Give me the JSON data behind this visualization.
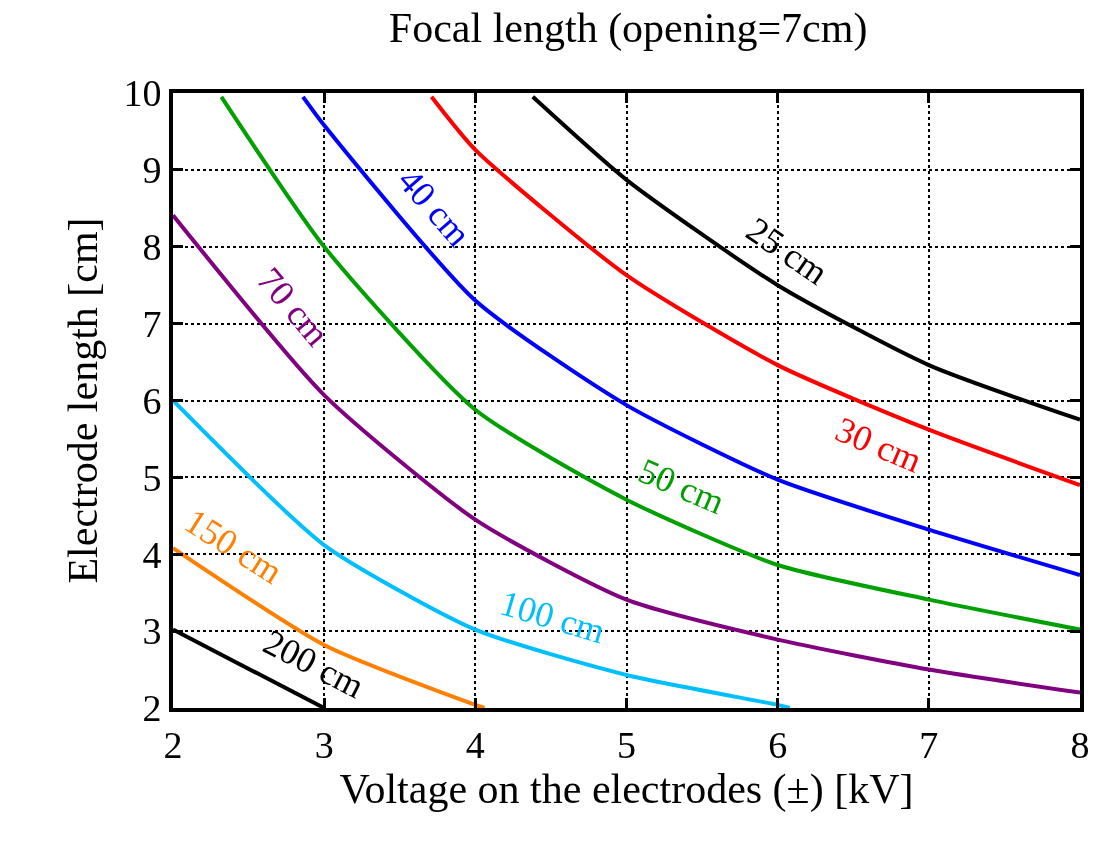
{
  "chart_data": {
    "type": "line",
    "title": "Focal length (opening=7cm)",
    "xlabel": "Voltage on the electrodes (±) [kV]",
    "ylabel": "Electrode length [cm]",
    "xlim": [
      2,
      8
    ],
    "ylim": [
      2,
      10
    ],
    "xticks": [
      2,
      3,
      4,
      5,
      6,
      7,
      8
    ],
    "yticks": [
      2,
      3,
      4,
      5,
      6,
      7,
      8,
      9,
      10
    ],
    "grid": true,
    "legend": false,
    "line_style": "solid",
    "marker": "none",
    "series": [
      {
        "name": "25 cm",
        "color": "#000000",
        "x": [
          4.38,
          5,
          6,
          7,
          8
        ],
        "values": [
          9.95,
          8.87,
          7.5,
          6.46,
          5.75
        ]
      },
      {
        "name": "30 cm",
        "color": "#ff0000",
        "x": [
          3.71,
          4,
          5,
          6,
          7,
          8
        ],
        "values": [
          9.95,
          9.26,
          7.63,
          6.46,
          5.62,
          4.9
        ]
      },
      {
        "name": "40 cm",
        "color": "#0000ff",
        "x": [
          2.86,
          3,
          4,
          5,
          6,
          7,
          8
        ],
        "values": [
          9.95,
          9.58,
          7.3,
          5.94,
          4.97,
          4.32,
          3.73
        ]
      },
      {
        "name": "50 cm",
        "color": "#00a000",
        "x": [
          2.32,
          3,
          4,
          5,
          6,
          7,
          8
        ],
        "values": [
          9.95,
          8.0,
          5.88,
          4.71,
          3.86,
          3.41,
          3.02
        ]
      },
      {
        "name": "70 cm",
        "color": "#800080",
        "x": [
          2,
          3,
          4,
          5,
          6,
          7,
          8
        ],
        "values": [
          8.41,
          6.07,
          4.45,
          3.41,
          2.89,
          2.5,
          2.2
        ]
      },
      {
        "name": "100 cm",
        "color": "#00bfff",
        "x": [
          2,
          3,
          4,
          5,
          6,
          6.08
        ],
        "values": [
          6.0,
          4.12,
          3.02,
          2.43,
          2.04,
          2.0
        ]
      },
      {
        "name": "150 cm",
        "color": "#ff8000",
        "x": [
          2,
          3,
          4,
          4.06
        ],
        "values": [
          4.08,
          2.82,
          2.04,
          2.0
        ]
      },
      {
        "name": "200 cm",
        "color": "#000000",
        "x": [
          2,
          3
        ],
        "values": [
          3.02,
          2.0
        ]
      }
    ]
  }
}
